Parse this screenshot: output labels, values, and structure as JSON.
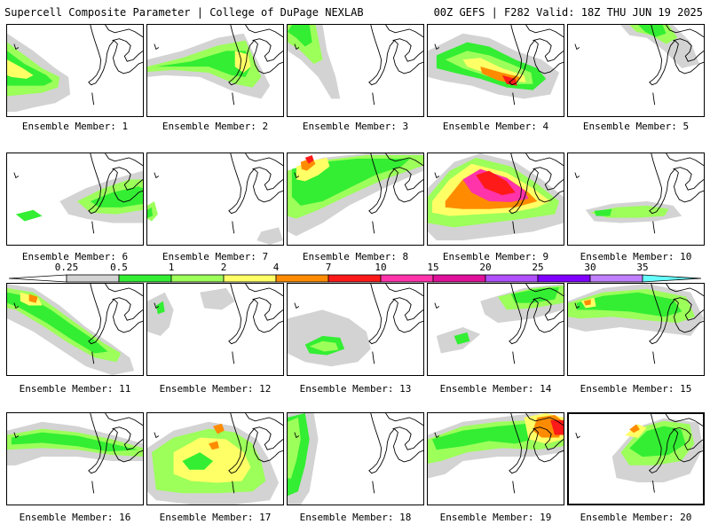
{
  "header": {
    "title": "Supercell Composite Parameter | College of DuPage NEXLAB",
    "run_info": "00Z GEFS | F282 Valid: 18Z THU JUN 19 2025"
  },
  "legend": {
    "thresholds": [
      "0.25",
      "0.5",
      "1",
      "2",
      "4",
      "7",
      "10",
      "15",
      "20",
      "25",
      "30",
      "35"
    ],
    "colors": [
      "#d3d3d3",
      "#33ee33",
      "#9cff5a",
      "#ffff66",
      "#ff8c00",
      "#ff1a1a",
      "#ff33aa",
      "#e0109a",
      "#b050ff",
      "#8000ff",
      "#c080ff",
      "#66ffff"
    ]
  },
  "members": [
    {
      "label": "Ensemble Member: 1"
    },
    {
      "label": "Ensemble Member: 2"
    },
    {
      "label": "Ensemble Member: 3"
    },
    {
      "label": "Ensemble Member: 4"
    },
    {
      "label": "Ensemble Member: 5"
    },
    {
      "label": "Ensemble Member: 6"
    },
    {
      "label": "Ensemble Member: 7"
    },
    {
      "label": "Ensemble Member: 8"
    },
    {
      "label": "Ensemble Member: 9"
    },
    {
      "label": "Ensemble Member: 10"
    },
    {
      "label": "Ensemble Member: 11"
    },
    {
      "label": "Ensemble Member: 12"
    },
    {
      "label": "Ensemble Member: 13"
    },
    {
      "label": "Ensemble Member: 14"
    },
    {
      "label": "Ensemble Member: 15"
    },
    {
      "label": "Ensemble Member: 16"
    },
    {
      "label": "Ensemble Member: 17"
    },
    {
      "label": "Ensemble Member: 18"
    },
    {
      "label": "Ensemble Member: 19"
    },
    {
      "label": "Ensemble Member: 20"
    }
  ]
}
